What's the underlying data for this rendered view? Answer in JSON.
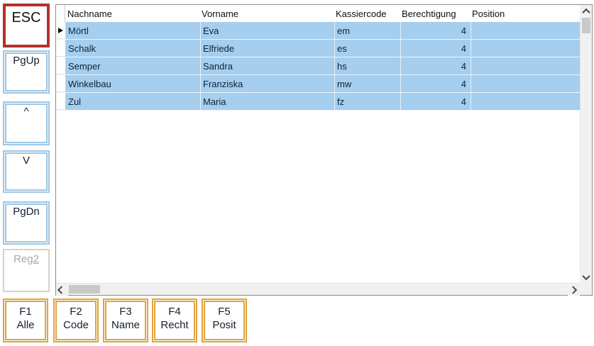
{
  "colors": {
    "esc_border": "#b4312e",
    "nav_button_border": "#9ec6e4",
    "fkey_border": "#dfa440",
    "row_highlight": "#a5ceef",
    "disabled_text": "#a8a8a8",
    "scrollbar_track": "#f1f1f1",
    "scrollbar_thumb": "#c9c9c9"
  },
  "icons": {
    "current_row_marker": "right-triangle",
    "scroll_up": "chevron-up",
    "scroll_down": "chevron-down",
    "scroll_left": "chevron-left",
    "scroll_right": "chevron-right"
  },
  "sidebar": {
    "esc": {
      "label": "ESC"
    },
    "pgup": {
      "label": "PgUp"
    },
    "up": {
      "label": "^"
    },
    "down": {
      "label": "V"
    },
    "pgdn": {
      "label": "PgDn"
    },
    "reg2": {
      "label_prefix": "Reg",
      "label_accesskey": "2"
    }
  },
  "grid": {
    "columns": {
      "nachname": "Nachname",
      "vorname": "Vorname",
      "kassiercode": "Kassiercode",
      "berechtigung": "Berechtigung",
      "position": "Position"
    },
    "rows": [
      {
        "nachname": "Mörtl",
        "vorname": "Eva",
        "kassiercode": "em",
        "berechtigung": "4",
        "position": ""
      },
      {
        "nachname": "Schalk",
        "vorname": "Elfriede",
        "kassiercode": "es",
        "berechtigung": "4",
        "position": ""
      },
      {
        "nachname": "Semper",
        "vorname": "Sandra",
        "kassiercode": "hs",
        "berechtigung": "4",
        "position": ""
      },
      {
        "nachname": "Winkelbau",
        "vorname": "Franziska",
        "kassiercode": "mw",
        "berechtigung": "4",
        "position": ""
      },
      {
        "nachname": "Zul",
        "vorname": "Maria",
        "kassiercode": "fz",
        "berechtigung": "4",
        "position": ""
      }
    ],
    "selected_row_index": 0
  },
  "function_keys": [
    {
      "key": "F1",
      "label": "Alle"
    },
    {
      "key": "F2",
      "label": "Code"
    },
    {
      "key": "F3",
      "label": "Name"
    },
    {
      "key": "F4",
      "label": "Recht"
    },
    {
      "key": "F5",
      "label": "Posit"
    }
  ]
}
